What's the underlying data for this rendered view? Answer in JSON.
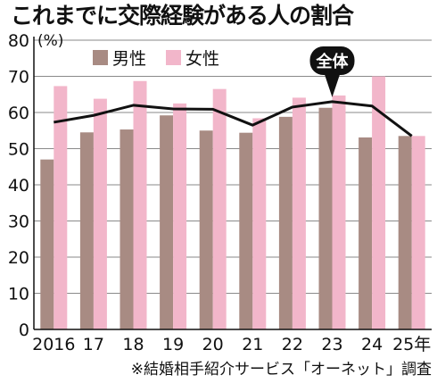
{
  "chart_data": {
    "type": "bar",
    "title": "これまでに交際経験がある人の割合",
    "unit_label": "(%)",
    "categories": [
      "2016",
      "17",
      "18",
      "19",
      "20",
      "21",
      "22",
      "23",
      "24",
      "25年"
    ],
    "ylim": [
      0,
      80
    ],
    "yticks": [
      0,
      10,
      20,
      30,
      40,
      50,
      60,
      70,
      80
    ],
    "grid": true,
    "legend_position": "top-left",
    "series": [
      {
        "name": "男性",
        "type": "bar",
        "color": "#a88b83",
        "values": [
          47,
          54.5,
          55.3,
          59.2,
          55,
          54.4,
          58.8,
          61.3,
          53.1,
          53.5
        ]
      },
      {
        "name": "女性",
        "type": "bar",
        "color": "#f2b6ca",
        "values": [
          67.3,
          63.8,
          68.7,
          62.5,
          66.5,
          58.4,
          64.1,
          64.7,
          70,
          53.5
        ]
      },
      {
        "name": "全体",
        "type": "line",
        "color": "#111111",
        "label_style": "callout",
        "values": [
          57.3,
          59.2,
          62,
          61,
          60.9,
          56.5,
          61.5,
          63,
          61.8,
          53.5
        ]
      }
    ],
    "source": "※結婚相手紹介サービス「オーネット」調査"
  }
}
